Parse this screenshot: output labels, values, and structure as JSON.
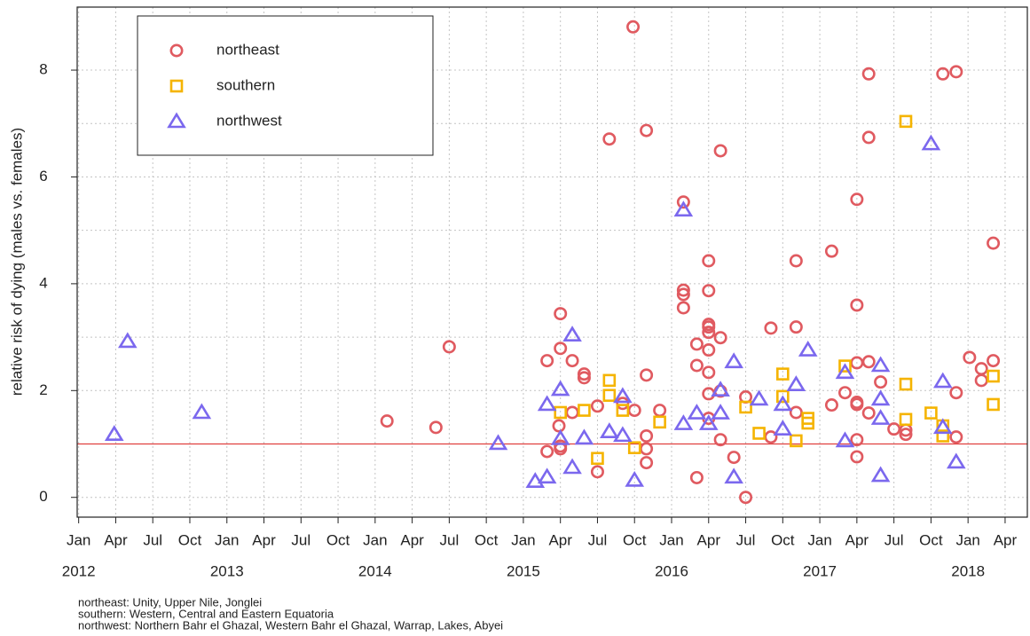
{
  "chart_data": {
    "type": "scatter",
    "y_label": "relative risk of dying (males vs. females)",
    "xlim": [
      2011.99,
      2018.4
    ],
    "ylim": [
      -0.37,
      9.18
    ],
    "xticks": [
      {
        "value": 2012.0,
        "label": "Jan"
      },
      {
        "value": 2012.25,
        "label": "Apr"
      },
      {
        "value": 2012.5,
        "label": "Jul"
      },
      {
        "value": 2012.75,
        "label": "Oct"
      },
      {
        "value": 2013.0,
        "label": "Jan"
      },
      {
        "value": 2013.25,
        "label": "Apr"
      },
      {
        "value": 2013.5,
        "label": "Jul"
      },
      {
        "value": 2013.75,
        "label": "Oct"
      },
      {
        "value": 2014.0,
        "label": "Jan"
      },
      {
        "value": 2014.25,
        "label": "Apr"
      },
      {
        "value": 2014.5,
        "label": "Jul"
      },
      {
        "value": 2014.75,
        "label": "Oct"
      },
      {
        "value": 2015.0,
        "label": "Jan"
      },
      {
        "value": 2015.25,
        "label": "Apr"
      },
      {
        "value": 2015.5,
        "label": "Jul"
      },
      {
        "value": 2015.75,
        "label": "Oct"
      },
      {
        "value": 2016.0,
        "label": "Jan"
      },
      {
        "value": 2016.25,
        "label": "Apr"
      },
      {
        "value": 2016.5,
        "label": "Jul"
      },
      {
        "value": 2016.75,
        "label": "Oct"
      },
      {
        "value": 2017.0,
        "label": "Jan"
      },
      {
        "value": 2017.25,
        "label": "Apr"
      },
      {
        "value": 2017.5,
        "label": "Jul"
      },
      {
        "value": 2017.75,
        "label": "Oct"
      },
      {
        "value": 2018.0,
        "label": "Jan"
      },
      {
        "value": 2018.25,
        "label": "Apr"
      }
    ],
    "year_ticks": [
      2012,
      2013,
      2014,
      2015,
      2016,
      2017,
      2018
    ],
    "yticks": [
      0,
      2,
      4,
      6,
      8
    ],
    "ygrid_minor": [
      1,
      3,
      5,
      7
    ],
    "grid": true,
    "hline": {
      "value": 1,
      "color": "#e0403f"
    },
    "legend": "top-left",
    "series": [
      {
        "name": "northeast",
        "color": "#e05a60",
        "marker": "circle",
        "x": [
          2014.08,
          2014.41,
          2014.5,
          2015.16,
          2015.25,
          2015.25,
          2015.33,
          2015.24,
          2015.25,
          2015.25,
          2015.16,
          2015.33,
          2015.41,
          2015.41,
          2015.5,
          2015.5,
          2015.58,
          2015.67,
          2015.74,
          2015.75,
          2015.83,
          2015.83,
          2015.83,
          2015.83,
          2015.83,
          2015.92,
          2016.08,
          2016.08,
          2016.08,
          2016.08,
          2016.17,
          2016.17,
          2016.17,
          2016.25,
          2016.25,
          2016.25,
          2016.25,
          2016.25,
          2016.25,
          2016.25,
          2016.25,
          2016.25,
          2016.33,
          2016.33,
          2016.33,
          2016.33,
          2016.42,
          2016.5,
          2016.5,
          2016.67,
          2016.67,
          2016.84,
          2016.84,
          2016.84,
          2017.08,
          2017.08,
          2017.17,
          2017.25,
          2017.25,
          2017.25,
          2017.25,
          2017.25,
          2017.25,
          2017.25,
          2017.33,
          2017.33,
          2017.33,
          2017.33,
          2017.41,
          2017.5,
          2017.58,
          2017.58,
          2017.83,
          2017.92,
          2017.92,
          2017.92,
          2018.01,
          2018.09,
          2018.09,
          2018.17,
          2018.17
        ],
        "values": [
          1.43,
          1.31,
          2.82,
          2.56,
          3.44,
          2.79,
          2.56,
          1.34,
          0.96,
          0.91,
          0.86,
          1.59,
          2.31,
          2.24,
          1.71,
          0.48,
          6.71,
          1.76,
          8.81,
          1.63,
          6.87,
          2.29,
          1.15,
          0.91,
          0.65,
          1.63,
          5.53,
          3.88,
          3.8,
          3.55,
          2.87,
          2.47,
          0.37,
          4.43,
          3.87,
          3.24,
          3.19,
          3.09,
          2.76,
          2.34,
          1.94,
          1.48,
          6.49,
          2.99,
          1.99,
          1.08,
          0.75,
          1.88,
          0,
          3.17,
          1.13,
          4.43,
          3.19,
          1.59,
          4.61,
          1.73,
          1.96,
          5.58,
          3.6,
          1.78,
          1.74,
          2.52,
          1.08,
          0.76,
          7.93,
          6.74,
          2.54,
          1.58,
          2.16,
          1.28,
          1.26,
          1.18,
          7.93,
          7.97,
          1.96,
          1.13,
          2.62,
          2.19,
          2.41,
          2.56,
          4.76
        ]
      },
      {
        "name": "southern",
        "color": "#f5b400",
        "marker": "square",
        "x": [
          2015.25,
          2015.41,
          2015.5,
          2015.58,
          2015.58,
          2015.67,
          2015.75,
          2015.92,
          2016.5,
          2016.59,
          2016.75,
          2016.75,
          2016.84,
          2016.92,
          2016.92,
          2017.17,
          2017.58,
          2017.58,
          2017.58,
          2017.75,
          2017.83,
          2017.83,
          2018.17,
          2018.17
        ],
        "values": [
          1.59,
          1.63,
          0.73,
          2.19,
          1.91,
          1.63,
          0.93,
          1.41,
          1.69,
          1.2,
          2.31,
          1.89,
          1.06,
          1.48,
          1.39,
          2.46,
          7.04,
          2.12,
          1.46,
          1.58,
          1.34,
          1.15,
          2.27,
          1.74
        ]
      },
      {
        "name": "northwest",
        "color": "#7b68ee",
        "marker": "triangle",
        "x": [
          2012.24,
          2012.33,
          2012.83,
          2014.83,
          2015.08,
          2015.16,
          2015.16,
          2015.25,
          2015.25,
          2015.33,
          2015.33,
          2015.41,
          2015.58,
          2015.67,
          2015.67,
          2015.75,
          2016.08,
          2016.08,
          2016.17,
          2016.25,
          2016.33,
          2016.33,
          2016.42,
          2016.42,
          2016.59,
          2016.75,
          2016.75,
          2016.84,
          2016.92,
          2017.17,
          2017.17,
          2017.41,
          2017.41,
          2017.41,
          2017.41,
          2017.75,
          2017.83,
          2017.83,
          2017.92
        ],
        "values": [
          1.18,
          2.92,
          1.59,
          1.01,
          0.3,
          0.38,
          1.74,
          2.02,
          1.1,
          3.04,
          0.56,
          1.11,
          1.23,
          1.89,
          1.16,
          0.32,
          1.38,
          5.38,
          1.58,
          1.38,
          1.58,
          2.01,
          2.54,
          0.38,
          1.84,
          1.28,
          1.74,
          2.11,
          2.76,
          1.06,
          2.34,
          2.47,
          1.84,
          1.48,
          0.41,
          6.62,
          2.17,
          1.31,
          0.66
        ]
      }
    ],
    "notes": [
      "northeast: Unity, Upper Nile, Jonglei",
      "southern: Western, Central and Eastern Equatoria",
      "northwest: Northern Bahr el Ghazal, Western Bahr el Ghazal, Warrap, Lakes, Abyei"
    ]
  }
}
